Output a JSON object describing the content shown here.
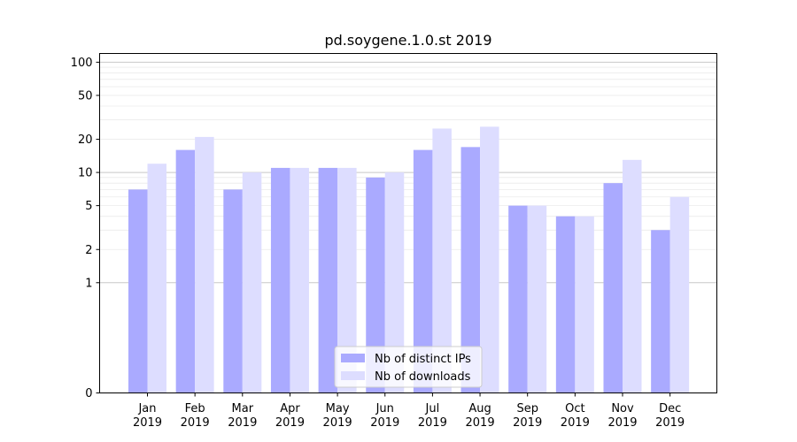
{
  "chart_data": {
    "type": "bar",
    "title": "pd.soygene.1.0.st 2019",
    "xlabel": "",
    "ylabel": "",
    "categories": [
      [
        "Jan",
        "2019"
      ],
      [
        "Feb",
        "2019"
      ],
      [
        "Mar",
        "2019"
      ],
      [
        "Apr",
        "2019"
      ],
      [
        "May",
        "2019"
      ],
      [
        "Jun",
        "2019"
      ],
      [
        "Jul",
        "2019"
      ],
      [
        "Aug",
        "2019"
      ],
      [
        "Sep",
        "2019"
      ],
      [
        "Oct",
        "2019"
      ],
      [
        "Nov",
        "2019"
      ],
      [
        "Dec",
        "2019"
      ]
    ],
    "series": [
      {
        "name": "Nb of distinct IPs",
        "color": "#aaaaff",
        "values": [
          7,
          16,
          7,
          11,
          11,
          9,
          16,
          17,
          5,
          4,
          8,
          3
        ]
      },
      {
        "name": "Nb of downloads",
        "color": "#ddddff",
        "values": [
          12,
          21,
          10,
          11,
          11,
          10,
          25,
          26,
          5,
          4,
          13,
          6
        ]
      }
    ],
    "yscale": "symlog",
    "ylim": [
      0,
      120
    ],
    "yticks": [
      0,
      1,
      2,
      5,
      10,
      20,
      50,
      100
    ],
    "grid": true,
    "legend_position": "bottom-center"
  }
}
